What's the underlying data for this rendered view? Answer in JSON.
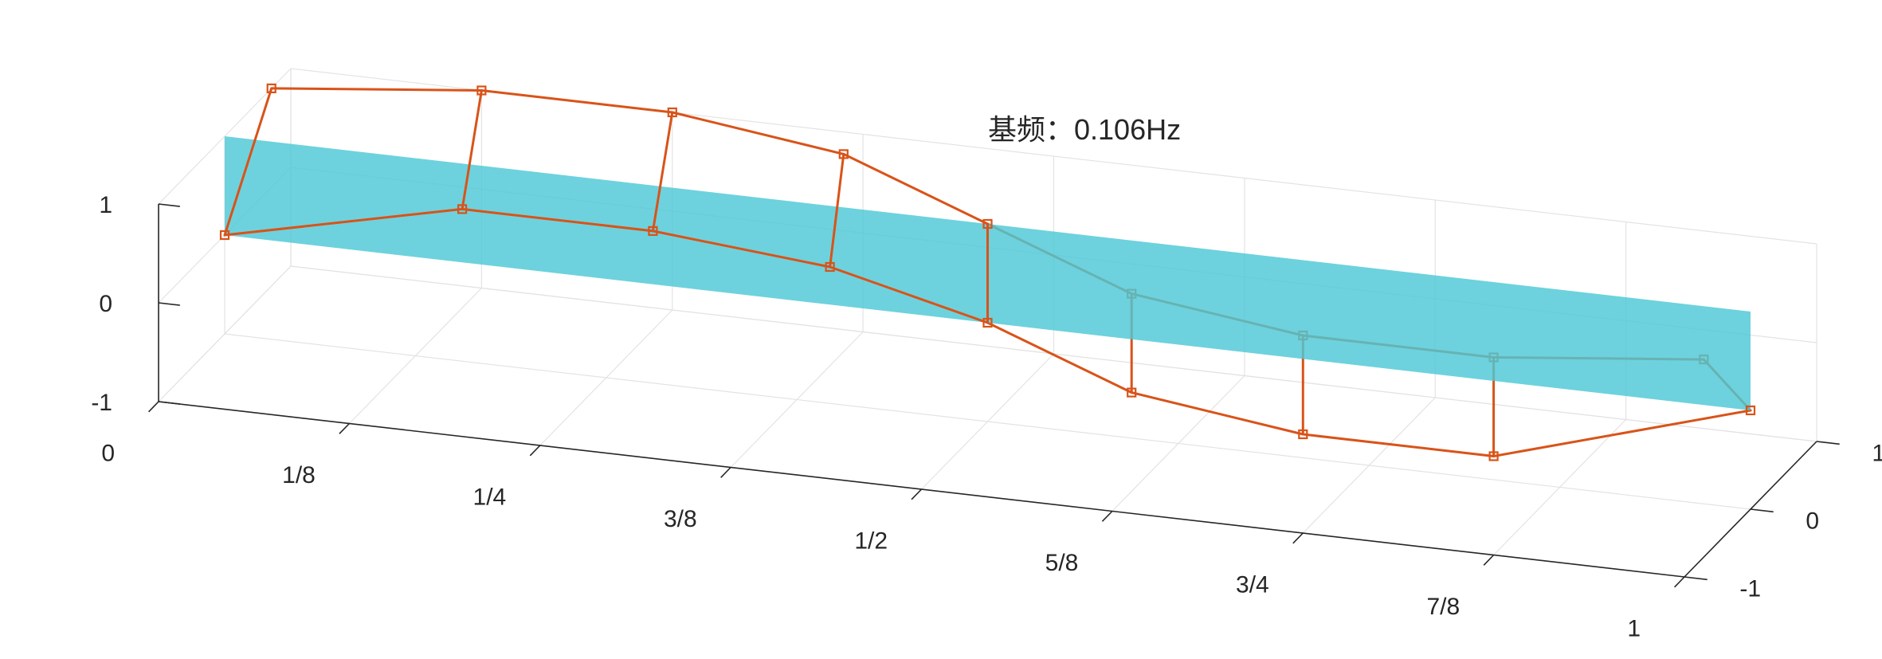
{
  "chart_data": {
    "type": "line",
    "projection": "3d-perspective",
    "grid": true,
    "axes": {
      "x": {
        "range": [
          0,
          1
        ],
        "ticks": [
          0,
          0.125,
          0.25,
          0.375,
          0.5,
          0.625,
          0.75,
          0.875,
          1
        ],
        "tick_labels": [
          "0",
          "1/8",
          "1/4",
          "3/8",
          "1/2",
          "5/8",
          "3/4",
          "7/8",
          "1"
        ]
      },
      "y": {
        "range": [
          -1,
          1
        ],
        "ticks": [
          1,
          0,
          -1
        ],
        "tick_labels": [
          "1",
          "0",
          "-1"
        ]
      },
      "z": {
        "range": [
          -1,
          1
        ],
        "ticks": [
          1,
          0,
          -1
        ],
        "tick_labels": [
          "1",
          "0",
          "-1"
        ]
      }
    },
    "plane": {
      "y": 0,
      "color": "#4dc8d6"
    },
    "annotation": "基频：0.106Hz",
    "series": [
      {
        "color": "#d95319",
        "marker": "square",
        "x": [
          0,
          0.125,
          0.25,
          0.375,
          0.5,
          0.625,
          0.75,
          0.875,
          1
        ],
        "top": [
          {
            "y": 0.707,
            "z": 1
          },
          {
            "y": 1,
            "z": 1
          },
          {
            "y": 1,
            "z": 1
          },
          {
            "y": 0.707,
            "z": 1
          },
          {
            "y": 0,
            "z": 1
          },
          {
            "y": -0.707,
            "z": 1
          },
          {
            "y": -1,
            "z": 1
          },
          {
            "y": -1,
            "z": 1
          },
          {
            "y": -0.707,
            "z": 1
          }
        ],
        "bottom": [
          {
            "y": 0,
            "z": 0
          },
          {
            "y": 0.707,
            "z": 0
          },
          {
            "y": 0.707,
            "z": 0
          },
          {
            "y": 0.5,
            "z": 0
          },
          {
            "y": 0,
            "z": 0
          },
          {
            "y": -0.707,
            "z": 0
          },
          {
            "y": -1,
            "z": 0
          },
          {
            "y": -1,
            "z": 0
          },
          {
            "y": 0,
            "z": 0
          }
        ]
      }
    ]
  }
}
